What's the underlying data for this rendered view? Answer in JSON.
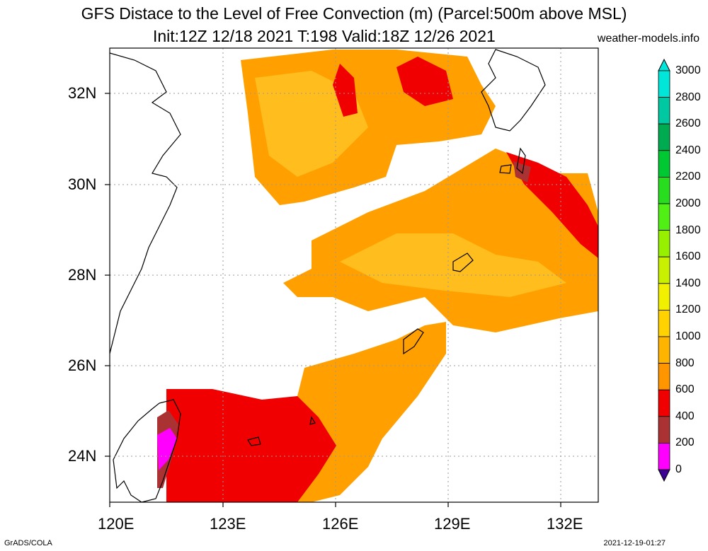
{
  "title": {
    "line1": "GFS Distace to the Level of Free Convection (m) (Parcel:500m above MSL)",
    "line2": "Init:12Z 12/18 2021 T:198 Valid:18Z 12/26 2021",
    "site": "weather-models.info"
  },
  "footer": {
    "left": "GrADS/COLA",
    "right": "2021-12-19-01:27"
  },
  "axes": {
    "lat_labels": [
      "32N",
      "30N",
      "28N",
      "26N",
      "24N"
    ],
    "lon_labels": [
      "120E",
      "123E",
      "126E",
      "129E",
      "132E"
    ]
  },
  "colorbar": {
    "labels": [
      "3000",
      "2800",
      "2600",
      "2400",
      "2200",
      "2000",
      "1800",
      "1600",
      "1400",
      "1200",
      "1000",
      "800",
      "600",
      "400",
      "200",
      "0"
    ],
    "colors": [
      "#00e6d8",
      "#00c8a0",
      "#00aa50",
      "#00c832",
      "#28dc1e",
      "#50f014",
      "#96f000",
      "#c8f000",
      "#f0f000",
      "#ffd200",
      "#ffb400",
      "#ff9600",
      "#f00000",
      "#aa3232",
      "#ff00ff",
      "#3c0096"
    ]
  }
}
